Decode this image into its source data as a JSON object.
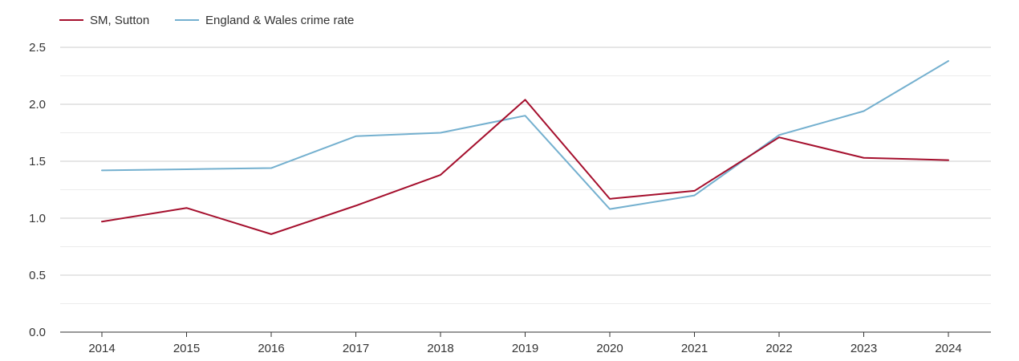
{
  "chart_data": {
    "type": "line",
    "title": "",
    "xlabel": "",
    "ylabel": "",
    "categories": [
      "2014",
      "2015",
      "2016",
      "2017",
      "2018",
      "2019",
      "2020",
      "2021",
      "2022",
      "2023",
      "2024"
    ],
    "ylim": [
      0,
      2.5
    ],
    "y_ticks": [
      "0.0",
      "0.5",
      "1.0",
      "1.5",
      "2.0",
      "2.5"
    ],
    "grid": true,
    "legend_position": "top-left",
    "series": [
      {
        "name": "SM, Sutton",
        "color": "#a50f2d",
        "values": [
          0.97,
          1.09,
          0.86,
          1.11,
          1.38,
          2.04,
          1.17,
          1.24,
          1.71,
          1.53,
          1.51
        ]
      },
      {
        "name": "England & Wales crime rate",
        "color": "#74b0cf",
        "values": [
          1.42,
          1.43,
          1.44,
          1.72,
          1.75,
          1.9,
          1.08,
          1.2,
          1.73,
          1.94,
          2.38
        ]
      }
    ]
  }
}
